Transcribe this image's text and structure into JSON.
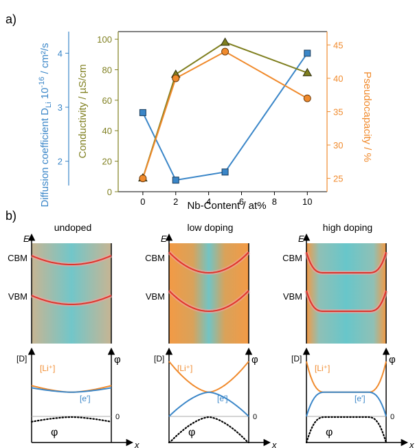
{
  "colors": {
    "blue": "#3a86c8",
    "green": "#7f7f1f",
    "orange": "#f08a2c",
    "band": "#e0332b",
    "teal": "#5fc3c7",
    "axis": "#000000"
  },
  "panel_a": {
    "label": "a)",
    "left_axis_label": "Diffusion coefficient D",
    "left_axis_sub": "Li",
    "left_axis_suffix": " 10",
    "left_axis_sup": "-16",
    "left_axis_unit": " / cm²/s",
    "middle_axis_label": "Conductivity / µS/cm",
    "right_axis_label": "Pseudocapacity / %",
    "x_axis_label": "Nb-Content / at%"
  },
  "chart_data": {
    "type": "line",
    "x": [
      0,
      2,
      5,
      10
    ],
    "xlim": [
      -1.5,
      11.2
    ],
    "x_ticks": [
      "0",
      "2",
      "4",
      "6",
      "8",
      "10"
    ],
    "series": [
      {
        "axis": "diffusion",
        "color": "#3a86c8",
        "marker": "square",
        "values": [
          2.9,
          1.65,
          1.8,
          4.0
        ]
      },
      {
        "axis": "conductivity",
        "color": "#7f7f1f",
        "marker": "triangle",
        "values": [
          9,
          77,
          98,
          78
        ]
      },
      {
        "axis": "pseudocapacity",
        "color": "#f08a2c",
        "marker": "circle",
        "values": [
          25,
          40,
          44,
          37
        ]
      }
    ],
    "axes": {
      "diffusion": {
        "ylim": [
          1.55,
          4.4
        ],
        "ticks": [
          "2",
          "3",
          "4"
        ]
      },
      "conductivity": {
        "ylim": [
          0,
          105
        ],
        "ticks": [
          "0",
          "20",
          "40",
          "60",
          "80",
          "100"
        ]
      },
      "pseudocapacity": {
        "ylim": [
          23,
          47
        ],
        "ticks": [
          "25",
          "30",
          "35",
          "40",
          "45"
        ]
      }
    }
  },
  "panel_b": {
    "label": "b)",
    "energy_label": "E",
    "cbm_label": "CBM",
    "vbm_label": "VBM",
    "d_label": "[D]",
    "phi_label": "φ",
    "zero_label": "0",
    "x_label": "x",
    "li_label": "[Li⁺]",
    "e_label": "[e′]",
    "phi_curve_label": "φ",
    "columns": [
      {
        "title": "undoped",
        "bend": 0.15,
        "flat": 0.0,
        "li_high": 0.56,
        "li_low": 0.44,
        "e_low": 0.52,
        "e_high": 0.44,
        "phi_depth": 0.18
      },
      {
        "title": "low doping",
        "bend": 1.0,
        "flat": 0.0,
        "li_high": 1.0,
        "li_low": 0.44,
        "e_low": 0.0,
        "e_high": 0.44,
        "phi_depth": 1.0
      },
      {
        "title": "high doping",
        "bend": 1.0,
        "flat": 0.55,
        "li_high": 1.0,
        "li_low": 0.44,
        "e_low": 0.0,
        "e_high": 0.44,
        "phi_depth": 1.0
      }
    ]
  }
}
